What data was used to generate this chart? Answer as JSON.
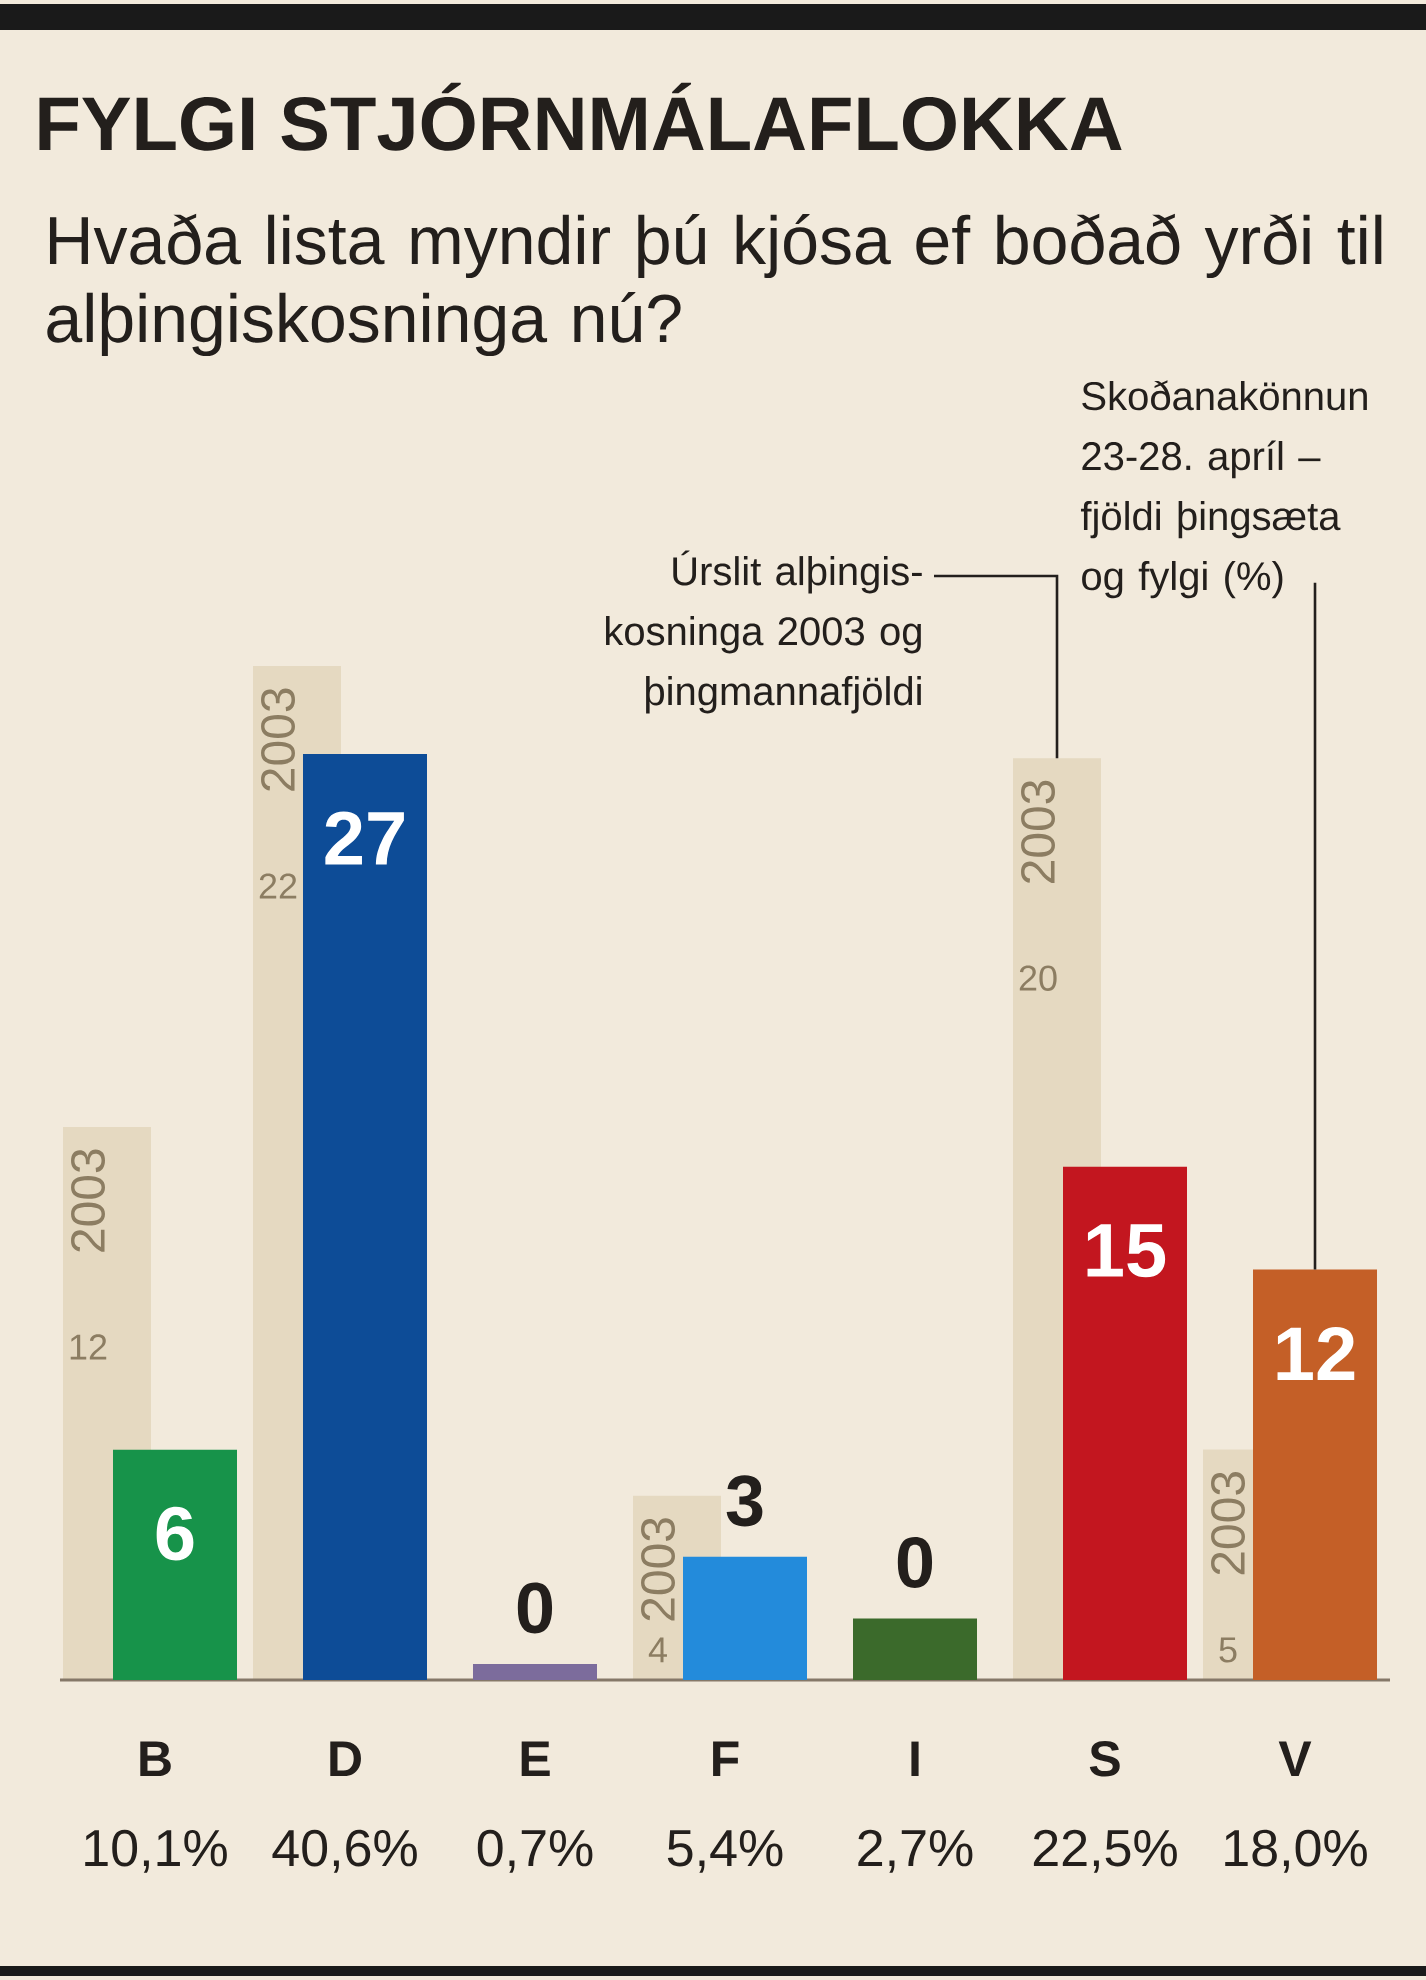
{
  "chart_data": {
    "type": "bar",
    "title": "FYLGI STJÓRNMÁLAFLOKKA",
    "subtitle": "Hvaða lista myndir þú kjósa ef boðað yrði til alþingiskosninga nú?",
    "categories": [
      "B",
      "D",
      "E",
      "F",
      "I",
      "S",
      "V"
    ],
    "series": [
      {
        "name": "2003",
        "axis": "y2",
        "color": "#e5d9c1",
        "values": [
          12,
          22,
          null,
          4,
          null,
          20,
          5
        ],
        "value_labels": [
          "12",
          "22",
          null,
          "4",
          null,
          "20",
          "5"
        ]
      },
      {
        "colors": [
          "#17934a",
          "#0d4c97",
          "#7c6c9c",
          "#238bdb",
          "#3b6a2b",
          "#c3161f",
          "#c45f27"
        ],
        "values": [
          10.1,
          40.6,
          0.7,
          5.4,
          2.7,
          22.5,
          18.0
        ],
        "value_labels": [
          "10,1%",
          "40,6%",
          "0,7%",
          "5,4%",
          "2,7%",
          "22,5%",
          "18,0%"
        ]
      }
    ],
    "annotations": [
      "Úrslit alþingis-kosninga 2003 og þingmannafjöldi",
      "Skoðanakönnun 23-28. apríl – fjöldi þingsæta og fylgi (%)",
      {
        "text": "6",
        "x": "B",
        "y": 10.1
      },
      {
        "text": "27",
        "x": "D",
        "y": 40.6
      },
      {
        "text": "0",
        "x": "E",
        "y": 0.7
      },
      {
        "text": "3",
        "x": "F",
        "y": 5.4
      },
      {
        "text": "0",
        "x": "I",
        "y": 2.7
      },
      {
        "text": "15",
        "x": "S",
        "y": 22.5
      },
      {
        "text": "12",
        "x": "V",
        "y": 18.0
      }
    ]
  }
}
